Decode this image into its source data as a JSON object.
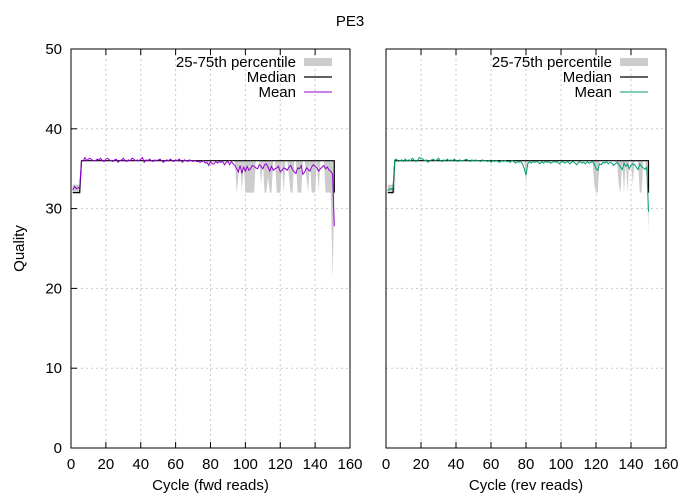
{
  "title": "PE3",
  "colors": {
    "iqr": "#cccccc",
    "median": "#000000",
    "mean_fwd": "#9400d3",
    "mean_rev": "#009e73"
  },
  "legend": {
    "iqr": "25-75th percentile",
    "median": "Median",
    "mean": "Mean",
    "placement": "top-right"
  },
  "chart_data": [
    {
      "type": "line",
      "panel": "fwd",
      "xlabel": "Cycle (fwd reads)",
      "ylabel": "Quality",
      "xlim": [
        0,
        160
      ],
      "ylim": [
        0,
        50
      ],
      "xticks": [
        0,
        20,
        40,
        60,
        80,
        100,
        120,
        140,
        160
      ],
      "yticks": [
        0,
        10,
        20,
        30,
        40,
        50
      ],
      "grid": true,
      "series": [
        {
          "name": "25-75th percentile",
          "kind": "band",
          "x": [
            1,
            2,
            3,
            4,
            5,
            6,
            7,
            8,
            9,
            10,
            20,
            30,
            40,
            50,
            60,
            70,
            80,
            90,
            92,
            94,
            95,
            96,
            97,
            98,
            99,
            100,
            101,
            102,
            103,
            104,
            105,
            106,
            107,
            108,
            109,
            110,
            111,
            112,
            113,
            114,
            115,
            116,
            117,
            118,
            119,
            120,
            121,
            122,
            123,
            124,
            125,
            126,
            127,
            128,
            129,
            130,
            131,
            132,
            133,
            134,
            135,
            136,
            137,
            138,
            139,
            140,
            141,
            142,
            143,
            144,
            145,
            146,
            147,
            148,
            149,
            150,
            151
          ],
          "low": [
            32,
            32,
            32,
            32,
            32,
            36,
            36,
            36,
            36,
            36,
            36,
            36,
            36,
            36,
            36,
            36,
            36,
            36,
            36,
            36,
            32,
            34,
            36,
            32,
            36,
            32,
            32,
            32,
            32,
            32,
            32,
            36,
            36,
            36,
            33,
            36,
            32,
            32,
            34,
            32,
            32,
            36,
            36,
            32,
            32,
            32,
            36,
            32,
            36,
            36,
            34,
            32,
            32,
            36,
            36,
            32,
            32,
            32,
            36,
            36,
            34,
            32,
            36,
            32,
            32,
            32,
            36,
            32,
            36,
            36,
            36,
            32,
            32,
            32,
            32,
            21,
            32
          ],
          "high": [
            33,
            33,
            33,
            33,
            33,
            36,
            36,
            36,
            36,
            36,
            36,
            36,
            36,
            36,
            36,
            36,
            36,
            36,
            36,
            36,
            36,
            36,
            36,
            36,
            36,
            36,
            36,
            36,
            36,
            36,
            36,
            36,
            36,
            36,
            36,
            36,
            36,
            36,
            36,
            36,
            36,
            36,
            36,
            36,
            36,
            36,
            36,
            36,
            36,
            36,
            36,
            36,
            36,
            36,
            36,
            36,
            36,
            36,
            36,
            36,
            36,
            36,
            36,
            36,
            36,
            36,
            36,
            36,
            36,
            36,
            36,
            36,
            36,
            36,
            36,
            36,
            36
          ]
        },
        {
          "name": "Median",
          "kind": "step",
          "x": [
            1,
            5,
            6,
            151,
            151
          ],
          "y": [
            32,
            32,
            36,
            36,
            32
          ]
        },
        {
          "name": "Mean",
          "kind": "line",
          "x": [
            1,
            2,
            3,
            4,
            5,
            6,
            7,
            8,
            9,
            10,
            11,
            12,
            13,
            14,
            15,
            16,
            17,
            18,
            19,
            20,
            21,
            22,
            23,
            24,
            25,
            26,
            27,
            28,
            29,
            30,
            31,
            32,
            33,
            34,
            35,
            36,
            37,
            38,
            39,
            40,
            41,
            42,
            43,
            44,
            45,
            46,
            47,
            48,
            49,
            50,
            51,
            52,
            53,
            54,
            55,
            56,
            57,
            58,
            59,
            60,
            61,
            62,
            63,
            64,
            65,
            66,
            67,
            68,
            69,
            70,
            71,
            72,
            73,
            74,
            75,
            76,
            77,
            78,
            79,
            80,
            81,
            82,
            83,
            84,
            85,
            86,
            87,
            88,
            89,
            90,
            91,
            92,
            93,
            94,
            95,
            96,
            97,
            98,
            99,
            100,
            101,
            102,
            103,
            104,
            105,
            106,
            107,
            108,
            109,
            110,
            111,
            112,
            113,
            114,
            115,
            116,
            117,
            118,
            119,
            120,
            121,
            122,
            123,
            124,
            125,
            126,
            127,
            128,
            129,
            130,
            131,
            132,
            133,
            134,
            135,
            136,
            137,
            138,
            139,
            140,
            141,
            142,
            143,
            144,
            145,
            146,
            147,
            148,
            149,
            150,
            151
          ],
          "y": [
            32.3,
            32.8,
            32.5,
            32.6,
            32.7,
            35.9,
            36.0,
            36.4,
            36.0,
            36.2,
            36.3,
            36.1,
            36.0,
            36.0,
            36.2,
            36.1,
            36.3,
            36.0,
            35.9,
            36.2,
            36.3,
            36.1,
            36.0,
            35.9,
            36.1,
            36.2,
            35.8,
            36.0,
            36.1,
            36.3,
            36.0,
            35.9,
            36.1,
            36.0,
            36.3,
            36.2,
            36.0,
            36.1,
            36.0,
            36.2,
            36.4,
            35.8,
            36.1,
            36.0,
            36.2,
            36.0,
            35.9,
            36.1,
            36.0,
            36.1,
            36.2,
            36.0,
            35.8,
            36.0,
            36.1,
            36.0,
            36.2,
            36.0,
            35.9,
            36.1,
            36.0,
            36.2,
            36.0,
            35.8,
            36.1,
            36.0,
            35.9,
            36.1,
            36.0,
            35.9,
            36.0,
            35.9,
            35.9,
            35.8,
            35.9,
            36.0,
            35.7,
            35.8,
            35.4,
            35.9,
            35.6,
            35.6,
            35.9,
            35.7,
            35.9,
            35.8,
            35.9,
            35.5,
            35.8,
            35.9,
            35.5,
            35.9,
            35.6,
            35.4,
            35.0,
            34.6,
            35.4,
            34.4,
            35.2,
            34.7,
            35.3,
            34.8,
            35.0,
            35.4,
            35.3,
            35.1,
            35.0,
            35.5,
            35.3,
            35.0,
            35.5,
            35.6,
            35.2,
            34.7,
            35.3,
            34.8,
            35.0,
            35.1,
            35.3,
            34.6,
            34.8,
            35.1,
            35.0,
            34.8,
            35.2,
            35.4,
            34.9,
            34.6,
            34.4,
            35.1,
            35.0,
            35.4,
            34.3,
            34.6,
            35.1,
            34.9,
            34.7,
            35.2,
            35.5,
            35.3,
            35.1,
            34.7,
            35.0,
            35.2,
            35.4,
            35.0,
            35.2,
            34.8,
            34.7,
            34.3,
            27.8
          ]
        }
      ]
    },
    {
      "type": "line",
      "panel": "rev",
      "xlabel": "Cycle (rev reads)",
      "ylabel": "",
      "xlim": [
        0,
        160
      ],
      "ylim": [
        0,
        50
      ],
      "xticks": [
        0,
        20,
        40,
        60,
        80,
        100,
        120,
        140,
        160
      ],
      "yticks": [],
      "grid": true,
      "series": [
        {
          "name": "25-75th percentile",
          "kind": "band",
          "x": [
            1,
            2,
            3,
            4,
            5,
            6,
            7,
            8,
            10,
            20,
            30,
            40,
            50,
            60,
            70,
            78,
            79,
            80,
            81,
            82,
            90,
            100,
            110,
            115,
            118,
            119,
            120,
            121,
            122,
            123,
            124,
            125,
            130,
            132,
            133,
            134,
            135,
            136,
            137,
            138,
            139,
            140,
            141,
            142,
            143,
            144,
            145,
            146,
            147,
            148,
            149,
            150
          ],
          "low": [
            32,
            32,
            32,
            32,
            32,
            36,
            36,
            36,
            36,
            36,
            36,
            36,
            36,
            36,
            36,
            36,
            36,
            33,
            36,
            36,
            36,
            36,
            36,
            36,
            36,
            33,
            32,
            32,
            36,
            36,
            36,
            36,
            36,
            36,
            33,
            32,
            36,
            32,
            36,
            32,
            36,
            36,
            33,
            36,
            36,
            36,
            32,
            32,
            36,
            36,
            34,
            27
          ],
          "high": [
            33,
            33,
            33,
            33,
            33,
            36,
            36,
            36,
            36,
            36,
            36,
            36,
            36,
            36,
            36,
            36,
            36,
            36,
            36,
            36,
            36,
            36,
            36,
            36,
            36,
            36,
            36,
            36,
            36,
            36,
            36,
            36,
            36,
            36,
            36,
            36,
            36,
            36,
            36,
            36,
            36,
            36,
            36,
            36,
            36,
            36,
            36,
            36,
            36,
            36,
            36,
            36
          ]
        },
        {
          "name": "Median",
          "kind": "step",
          "x": [
            1,
            4,
            5,
            150,
            150
          ],
          "y": [
            32,
            32,
            36,
            36,
            32
          ]
        },
        {
          "name": "Mean",
          "kind": "line",
          "x": [
            1,
            2,
            3,
            4,
            5,
            6,
            7,
            8,
            9,
            10,
            11,
            12,
            13,
            14,
            15,
            16,
            17,
            18,
            19,
            20,
            21,
            22,
            23,
            24,
            25,
            26,
            27,
            28,
            29,
            30,
            31,
            32,
            33,
            34,
            35,
            36,
            37,
            38,
            39,
            40,
            41,
            42,
            43,
            44,
            45,
            46,
            47,
            48,
            49,
            50,
            51,
            52,
            53,
            54,
            55,
            56,
            57,
            58,
            59,
            60,
            61,
            62,
            63,
            64,
            65,
            66,
            67,
            68,
            69,
            70,
            71,
            72,
            73,
            74,
            75,
            76,
            77,
            78,
            79,
            80,
            81,
            82,
            83,
            84,
            85,
            86,
            87,
            88,
            89,
            90,
            91,
            92,
            93,
            94,
            95,
            96,
            97,
            98,
            99,
            100,
            101,
            102,
            103,
            104,
            105,
            106,
            107,
            108,
            109,
            110,
            111,
            112,
            113,
            114,
            115,
            116,
            117,
            118,
            119,
            120,
            121,
            122,
            123,
            124,
            125,
            126,
            127,
            128,
            129,
            130,
            131,
            132,
            133,
            134,
            135,
            136,
            137,
            138,
            139,
            140,
            141,
            142,
            143,
            144,
            145,
            146,
            147,
            148,
            149,
            150
          ],
          "y": [
            32.2,
            32.5,
            32.4,
            32.6,
            36.1,
            36.2,
            35.9,
            36.0,
            36.1,
            35.9,
            36.2,
            36.0,
            36.1,
            36.0,
            36.3,
            36.1,
            35.9,
            36.0,
            36.4,
            36.3,
            36.2,
            36.0,
            36.1,
            35.8,
            36.0,
            36.1,
            36.2,
            36.0,
            36.1,
            36.3,
            36.0,
            35.9,
            36.1,
            36.0,
            36.2,
            36.0,
            36.1,
            36.0,
            36.2,
            36.0,
            35.9,
            36.1,
            36.0,
            36.0,
            36.1,
            36.2,
            36.0,
            35.9,
            36.1,
            36.0,
            36.1,
            36.0,
            36.0,
            35.9,
            36.1,
            36.0,
            36.0,
            35.9,
            36.0,
            35.8,
            36.0,
            35.9,
            36.0,
            35.9,
            35.8,
            36.0,
            35.9,
            36.0,
            35.9,
            35.9,
            35.8,
            36.0,
            35.9,
            35.7,
            35.9,
            35.8,
            35.9,
            35.6,
            35.0,
            34.2,
            35.6,
            35.9,
            35.7,
            35.9,
            35.8,
            35.9,
            35.8,
            35.6,
            35.9,
            35.7,
            35.9,
            35.8,
            35.9,
            35.7,
            35.8,
            35.9,
            35.8,
            35.9,
            35.6,
            35.8,
            35.9,
            35.7,
            35.8,
            35.9,
            35.6,
            35.8,
            35.9,
            35.7,
            35.5,
            35.8,
            35.9,
            35.7,
            35.8,
            35.6,
            35.9,
            35.7,
            35.8,
            35.9,
            35.6,
            35.0,
            34.8,
            35.6,
            35.5,
            35.8,
            35.7,
            35.9,
            35.6,
            35.8,
            35.7,
            35.4,
            35.6,
            35.8,
            35.5,
            35.2,
            34.9,
            35.7,
            35.3,
            35.6,
            35.0,
            35.4,
            35.6,
            35.5,
            35.2,
            34.9,
            35.6,
            35.3,
            35.1,
            34.9,
            35.2,
            29.6
          ]
        }
      ]
    }
  ]
}
